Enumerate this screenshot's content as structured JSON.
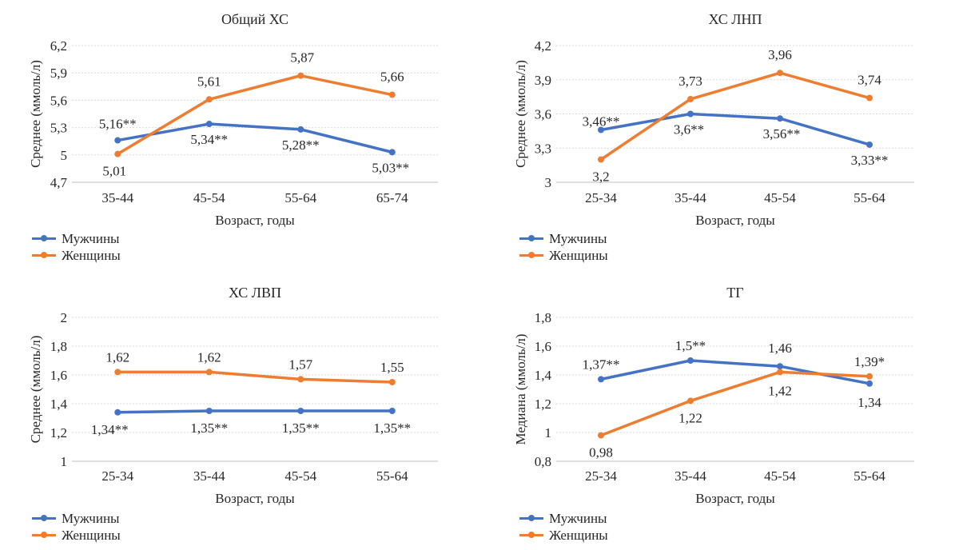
{
  "colors": {
    "men": "#4472C4",
    "women": "#ED7D31",
    "grid": "#d9d9d9"
  },
  "chart_data": [
    {
      "type": "line",
      "title": "Общий ХС",
      "xlabel": "Возраст, годы",
      "ylabel": "Среднее (ммоль/л)",
      "categories": [
        "35-44",
        "45-54",
        "55-64",
        "65-74"
      ],
      "ylim": [
        4.7,
        6.2
      ],
      "yticks": [
        "6,2",
        "5,9",
        "5,6",
        "5,3",
        "5",
        "4,7"
      ],
      "grid": true,
      "legend_position": "bottom-left",
      "series": [
        {
          "name": "Мужчины",
          "values": [
            5.16,
            5.34,
            5.28,
            5.03
          ],
          "labels": [
            "5,16**",
            "5,34**",
            "5,28**",
            "5,03**"
          ]
        },
        {
          "name": "Женщины",
          "values": [
            5.01,
            5.61,
            5.87,
            5.66
          ],
          "labels": [
            "5,01",
            "5,61",
            "5,87",
            "5,66"
          ]
        }
      ]
    },
    {
      "type": "line",
      "title": "ХС ЛНП",
      "xlabel": "Возраст, годы",
      "ylabel": "Среднее (ммоль/л)",
      "categories": [
        "25-34",
        "35-44",
        "45-54",
        "55-64"
      ],
      "ylim": [
        3.0,
        4.2
      ],
      "yticks": [
        "4,2",
        "3,9",
        "3,6",
        "3,3",
        "3"
      ],
      "grid": true,
      "legend_position": "bottom-left",
      "series": [
        {
          "name": "Мужчины",
          "values": [
            3.46,
            3.6,
            3.56,
            3.33
          ],
          "labels": [
            "3,46**",
            "3,6**",
            "3,56**",
            "3,33**"
          ]
        },
        {
          "name": "Женщины",
          "values": [
            3.2,
            3.73,
            3.96,
            3.74
          ],
          "labels": [
            "3,2",
            "3,73",
            "3,96",
            "3,74"
          ]
        }
      ]
    },
    {
      "type": "line",
      "title": "ХС ЛВП",
      "xlabel": "Возраст, годы",
      "ylabel": "Среднее (ммоль/л)",
      "categories": [
        "25-34",
        "35-44",
        "45-54",
        "55-64"
      ],
      "ylim": [
        1.0,
        2.0
      ],
      "yticks": [
        "2",
        "1,8",
        "1,6",
        "1,4",
        "1,2",
        "1"
      ],
      "grid": true,
      "legend_position": "bottom-left",
      "series": [
        {
          "name": "Мужчины",
          "values": [
            1.34,
            1.35,
            1.35,
            1.35
          ],
          "labels": [
            "1,34**",
            "1,35**",
            "1,35**",
            "1,35**"
          ]
        },
        {
          "name": "Женщины",
          "values": [
            1.62,
            1.62,
            1.57,
            1.55
          ],
          "labels": [
            "1,62",
            "1,62",
            "1,57",
            "1,55"
          ]
        }
      ]
    },
    {
      "type": "line",
      "title": "ТГ",
      "xlabel": "Возраст, годы",
      "ylabel": "Медиана (ммоль/л)",
      "categories": [
        "25-34",
        "35-44",
        "45-54",
        "55-64"
      ],
      "ylim": [
        0.8,
        1.8
      ],
      "yticks": [
        "1,8",
        "1,6",
        "1,4",
        "1,2",
        "1",
        "0,8"
      ],
      "grid": true,
      "legend_position": "bottom-left",
      "series": [
        {
          "name": "Мужчины",
          "values": [
            1.37,
            1.5,
            1.46,
            1.34
          ],
          "labels": [
            "1,37**",
            "1,5**",
            "1,46",
            "1,34"
          ]
        },
        {
          "name": "Женщины",
          "values": [
            0.98,
            1.22,
            1.42,
            1.39
          ],
          "labels": [
            "0,98",
            "1,22",
            "1,42",
            "1,39*"
          ]
        }
      ]
    }
  ]
}
